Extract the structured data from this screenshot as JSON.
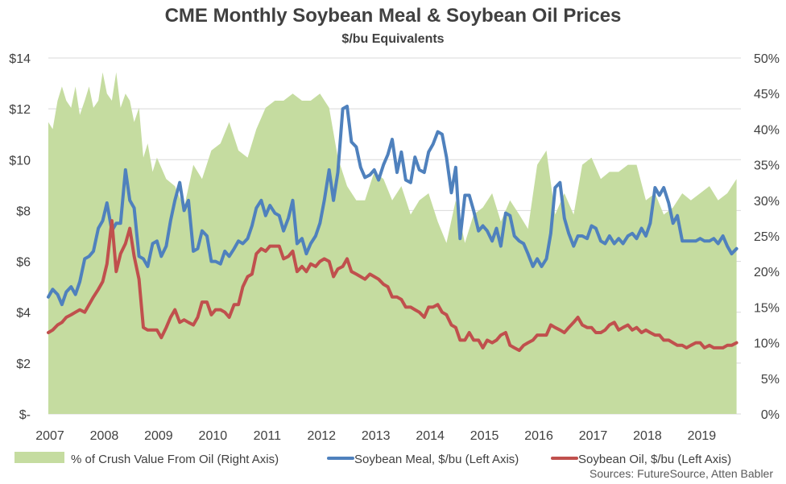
{
  "title": "CME Monthly Soybean Meal & Soybean Oil Prices",
  "subtitle": "$/bu Equivalents",
  "source": "Sources: FutureSource, Atten Babler",
  "colors": {
    "area": "#c5dca0",
    "meal": "#4f81bd",
    "oil": "#c0504d",
    "grid": "#d9d9d9"
  },
  "chart_data": {
    "type": "line",
    "x_labels": [
      "2007",
      "2008",
      "2009",
      "2010",
      "2011",
      "2012",
      "2013",
      "2014",
      "2015",
      "2016",
      "2017",
      "2018",
      "2019"
    ],
    "xlim": [
      2007,
      2019.75
    ],
    "y_left": {
      "ticks": [
        "$-",
        "$2",
        "$4",
        "$6",
        "$8",
        "$10",
        "$12",
        "$14"
      ],
      "ylim": [
        0,
        14
      ]
    },
    "y_right": {
      "ticks": [
        "0%",
        "5%",
        "10%",
        "15%",
        "20%",
        "25%",
        "30%",
        "35%",
        "40%",
        "45%",
        "50%"
      ],
      "ylim": [
        0,
        50
      ]
    },
    "grid": true,
    "legend_position": "bottom",
    "series": [
      {
        "name": "% of Crush Value From Oil (Right Axis)",
        "type": "area",
        "axis": "right",
        "x": [
          2007.0,
          2007.08,
          2007.17,
          2007.25,
          2007.33,
          2007.42,
          2007.5,
          2007.58,
          2007.67,
          2007.75,
          2007.83,
          2007.92,
          2008.0,
          2008.08,
          2008.17,
          2008.25,
          2008.33,
          2008.42,
          2008.5,
          2008.58,
          2008.67,
          2008.75,
          2008.83,
          2008.92,
          2009.0,
          2009.17,
          2009.33,
          2009.5,
          2009.67,
          2009.83,
          2010.0,
          2010.17,
          2010.33,
          2010.5,
          2010.67,
          2010.83,
          2011.0,
          2011.17,
          2011.33,
          2011.5,
          2011.67,
          2011.83,
          2012.0,
          2012.17,
          2012.33,
          2012.5,
          2012.67,
          2012.83,
          2013.0,
          2013.17,
          2013.33,
          2013.5,
          2013.67,
          2013.83,
          2014.0,
          2014.17,
          2014.33,
          2014.5,
          2014.67,
          2014.83,
          2015.0,
          2015.17,
          2015.33,
          2015.5,
          2015.67,
          2015.83,
          2016.0,
          2016.17,
          2016.33,
          2016.5,
          2016.67,
          2016.83,
          2017.0,
          2017.17,
          2017.33,
          2017.5,
          2017.67,
          2017.83,
          2018.0,
          2018.17,
          2018.33,
          2018.5,
          2018.67,
          2018.83,
          2019.0,
          2019.17,
          2019.33,
          2019.5,
          2019.67
        ],
        "values": [
          41,
          40,
          44,
          46,
          44,
          43,
          46,
          42,
          44,
          46,
          43,
          44,
          48,
          45,
          44,
          48,
          43,
          45,
          44,
          41,
          43,
          36,
          38,
          34,
          36,
          33,
          32,
          29,
          35,
          33,
          37,
          38,
          41,
          37,
          36,
          40,
          43,
          44,
          44,
          45,
          44,
          44,
          45,
          43,
          36,
          32,
          30,
          30,
          34,
          33,
          30,
          32,
          28,
          30,
          31,
          27,
          24,
          30,
          24,
          28,
          29,
          31,
          27,
          30,
          28,
          26,
          35,
          37,
          28,
          31,
          28,
          35,
          36,
          33,
          34,
          34,
          35,
          35,
          30,
          31,
          28,
          29,
          31,
          30,
          31,
          32,
          30,
          31,
          33
        ]
      },
      {
        "name": "Soybean Meal, $/bu (Left Axis)",
        "type": "line",
        "axis": "left",
        "x": [
          2007.0,
          2007.08,
          2007.17,
          2007.25,
          2007.33,
          2007.42,
          2007.5,
          2007.58,
          2007.67,
          2007.75,
          2007.83,
          2007.92,
          2008.0,
          2008.08,
          2008.17,
          2008.25,
          2008.33,
          2008.42,
          2008.5,
          2008.58,
          2008.67,
          2008.75,
          2008.83,
          2008.92,
          2009.0,
          2009.08,
          2009.17,
          2009.25,
          2009.33,
          2009.42,
          2009.5,
          2009.58,
          2009.67,
          2009.75,
          2009.83,
          2009.92,
          2010.0,
          2010.08,
          2010.17,
          2010.25,
          2010.33,
          2010.42,
          2010.5,
          2010.58,
          2010.67,
          2010.75,
          2010.83,
          2010.92,
          2011.0,
          2011.08,
          2011.17,
          2011.25,
          2011.33,
          2011.42,
          2011.5,
          2011.58,
          2011.67,
          2011.75,
          2011.83,
          2011.92,
          2012.0,
          2012.08,
          2012.17,
          2012.25,
          2012.33,
          2012.42,
          2012.5,
          2012.58,
          2012.67,
          2012.75,
          2012.83,
          2012.92,
          2013.0,
          2013.08,
          2013.17,
          2013.25,
          2013.33,
          2013.42,
          2013.5,
          2013.58,
          2013.67,
          2013.75,
          2013.83,
          2013.92,
          2014.0,
          2014.08,
          2014.17,
          2014.25,
          2014.33,
          2014.42,
          2014.5,
          2014.58,
          2014.67,
          2014.75,
          2014.83,
          2014.92,
          2015.0,
          2015.08,
          2015.17,
          2015.25,
          2015.33,
          2015.42,
          2015.5,
          2015.58,
          2015.67,
          2015.75,
          2015.83,
          2015.92,
          2016.0,
          2016.08,
          2016.17,
          2016.25,
          2016.33,
          2016.42,
          2016.5,
          2016.58,
          2016.67,
          2016.75,
          2016.83,
          2016.92,
          2017.0,
          2017.08,
          2017.17,
          2017.25,
          2017.33,
          2017.42,
          2017.5,
          2017.58,
          2017.67,
          2017.75,
          2017.83,
          2017.92,
          2018.0,
          2018.08,
          2018.17,
          2018.25,
          2018.33,
          2018.42,
          2018.5,
          2018.58,
          2018.67,
          2018.75,
          2018.83,
          2018.92,
          2019.0,
          2019.08,
          2019.17,
          2019.25,
          2019.33,
          2019.42,
          2019.5,
          2019.58,
          2019.67
        ],
        "values": [
          4.6,
          4.9,
          4.7,
          4.3,
          4.8,
          5.0,
          4.7,
          5.2,
          6.1,
          6.2,
          6.4,
          7.3,
          7.6,
          8.3,
          7.2,
          7.5,
          7.5,
          9.6,
          8.4,
          8.1,
          6.2,
          6.1,
          5.8,
          6.7,
          6.8,
          6.2,
          6.6,
          7.6,
          8.4,
          9.1,
          8.0,
          8.4,
          6.4,
          6.5,
          7.2,
          7.0,
          6.0,
          6.0,
          5.9,
          6.4,
          6.2,
          6.5,
          6.8,
          6.7,
          6.9,
          7.4,
          8.1,
          8.4,
          7.8,
          8.2,
          7.9,
          7.8,
          7.2,
          7.7,
          8.4,
          6.7,
          6.9,
          6.3,
          6.7,
          7.0,
          7.5,
          8.4,
          9.6,
          8.4,
          9.5,
          12.0,
          12.1,
          10.7,
          10.5,
          9.7,
          9.3,
          9.4,
          9.6,
          9.2,
          9.8,
          10.2,
          10.8,
          9.5,
          10.3,
          9.2,
          9.1,
          10.1,
          9.6,
          9.5,
          10.3,
          10.6,
          11.1,
          11.0,
          10.1,
          8.7,
          9.7,
          6.9,
          8.6,
          8.6,
          8.0,
          7.2,
          7.4,
          7.2,
          6.8,
          7.3,
          6.6,
          7.9,
          7.8,
          7.0,
          6.8,
          6.7,
          6.3,
          5.8,
          6.1,
          5.8,
          6.1,
          7.1,
          8.9,
          9.1,
          7.7,
          7.1,
          6.6,
          7.0,
          7.0,
          6.9,
          7.4,
          7.3,
          6.8,
          6.7,
          7.0,
          6.7,
          6.9,
          6.7,
          7.0,
          7.1,
          6.9,
          7.3,
          7.0,
          7.5,
          8.9,
          8.6,
          8.9,
          8.3,
          7.5,
          7.8,
          6.8,
          6.8,
          6.8,
          6.8,
          6.9,
          6.8,
          6.8,
          6.9,
          6.7,
          7.0,
          6.6,
          6.3,
          6.5
        ]
      },
      {
        "name": "Soybean Oil, $/bu (Left Axis)",
        "type": "line",
        "axis": "left",
        "x": [
          2007.0,
          2007.08,
          2007.17,
          2007.25,
          2007.33,
          2007.42,
          2007.5,
          2007.58,
          2007.67,
          2007.75,
          2007.83,
          2007.92,
          2008.0,
          2008.08,
          2008.17,
          2008.25,
          2008.33,
          2008.42,
          2008.5,
          2008.58,
          2008.67,
          2008.75,
          2008.83,
          2008.92,
          2009.0,
          2009.08,
          2009.17,
          2009.25,
          2009.33,
          2009.42,
          2009.5,
          2009.58,
          2009.67,
          2009.75,
          2009.83,
          2009.92,
          2010.0,
          2010.08,
          2010.17,
          2010.25,
          2010.33,
          2010.42,
          2010.5,
          2010.58,
          2010.67,
          2010.75,
          2010.83,
          2010.92,
          2011.0,
          2011.08,
          2011.17,
          2011.25,
          2011.33,
          2011.42,
          2011.5,
          2011.58,
          2011.67,
          2011.75,
          2011.83,
          2011.92,
          2012.0,
          2012.08,
          2012.17,
          2012.25,
          2012.33,
          2012.42,
          2012.5,
          2012.58,
          2012.67,
          2012.75,
          2012.83,
          2012.92,
          2013.0,
          2013.08,
          2013.17,
          2013.25,
          2013.33,
          2013.42,
          2013.5,
          2013.58,
          2013.67,
          2013.75,
          2013.83,
          2013.92,
          2014.0,
          2014.08,
          2014.17,
          2014.25,
          2014.33,
          2014.42,
          2014.5,
          2014.58,
          2014.67,
          2014.75,
          2014.83,
          2014.92,
          2015.0,
          2015.08,
          2015.17,
          2015.25,
          2015.33,
          2015.42,
          2015.5,
          2015.58,
          2015.67,
          2015.75,
          2015.83,
          2015.92,
          2016.0,
          2016.08,
          2016.17,
          2016.25,
          2016.33,
          2016.42,
          2016.5,
          2016.58,
          2016.67,
          2016.75,
          2016.83,
          2016.92,
          2017.0,
          2017.08,
          2017.17,
          2017.25,
          2017.33,
          2017.42,
          2017.5,
          2017.58,
          2017.67,
          2017.75,
          2017.83,
          2017.92,
          2018.0,
          2018.08,
          2018.17,
          2018.25,
          2018.33,
          2018.42,
          2018.5,
          2018.58,
          2018.67,
          2018.75,
          2018.83,
          2018.92,
          2019.0,
          2019.08,
          2019.17,
          2019.25,
          2019.33,
          2019.42,
          2019.5,
          2019.58,
          2019.67
        ],
        "values": [
          3.2,
          3.3,
          3.5,
          3.6,
          3.8,
          3.9,
          4.0,
          4.1,
          4.0,
          4.3,
          4.6,
          4.9,
          5.2,
          5.9,
          7.6,
          5.6,
          6.3,
          6.7,
          7.3,
          6.2,
          5.3,
          3.4,
          3.3,
          3.3,
          3.3,
          3.0,
          3.4,
          3.8,
          4.1,
          3.6,
          3.7,
          3.6,
          3.5,
          3.8,
          4.4,
          4.4,
          3.9,
          4.1,
          4.1,
          4.0,
          3.8,
          4.3,
          4.3,
          5.0,
          5.4,
          5.5,
          6.3,
          6.5,
          6.4,
          6.6,
          6.6,
          6.6,
          6.1,
          6.2,
          6.4,
          5.6,
          5.8,
          5.6,
          5.9,
          5.8,
          6.0,
          6.1,
          6.0,
          5.4,
          5.7,
          5.8,
          6.1,
          5.6,
          5.5,
          5.4,
          5.3,
          5.5,
          5.4,
          5.3,
          5.1,
          5.0,
          4.6,
          4.6,
          4.5,
          4.2,
          4.2,
          4.1,
          4.0,
          3.8,
          4.2,
          4.2,
          4.3,
          4.0,
          3.9,
          3.5,
          3.4,
          2.9,
          2.9,
          3.2,
          2.9,
          2.9,
          2.6,
          2.9,
          2.8,
          2.9,
          3.1,
          3.2,
          2.7,
          2.6,
          2.5,
          2.7,
          2.8,
          2.9,
          3.1,
          3.1,
          3.1,
          3.5,
          3.4,
          3.3,
          3.2,
          3.4,
          3.6,
          3.8,
          3.5,
          3.4,
          3.4,
          3.2,
          3.2,
          3.3,
          3.5,
          3.6,
          3.3,
          3.4,
          3.5,
          3.3,
          3.4,
          3.2,
          3.3,
          3.2,
          3.1,
          3.1,
          2.9,
          2.9,
          2.8,
          2.7,
          2.7,
          2.6,
          2.7,
          2.8,
          2.8,
          2.6,
          2.7,
          2.6,
          2.6,
          2.6,
          2.7,
          2.7,
          2.8
        ]
      }
    ]
  }
}
